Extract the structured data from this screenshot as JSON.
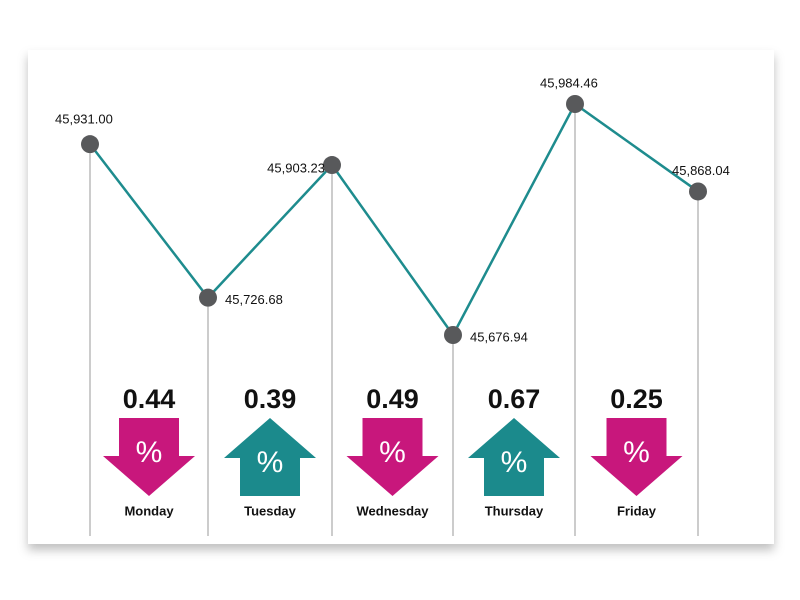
{
  "chart_data": {
    "type": "line",
    "values": [
      45931.0,
      45726.68,
      45903.23,
      45676.94,
      45984.46,
      45868.04
    ],
    "value_labels": [
      "45,931.00",
      "45,726.68",
      "45,903.23",
      "45,676.94",
      "45,984.46",
      "45,868.04"
    ],
    "color": "#1e8c8e",
    "marker_color": "#58595b",
    "changes": {
      "categories": [
        "Monday",
        "Tuesday",
        "Wednesday",
        "Thursday",
        "Friday"
      ],
      "values": [
        0.44,
        0.39,
        0.49,
        0.67,
        0.25
      ],
      "directions": [
        "down",
        "up",
        "down",
        "up",
        "down"
      ],
      "unit_symbol": "%",
      "colors": {
        "down": "#c8177c",
        "up": "#1b8a8c"
      }
    }
  }
}
